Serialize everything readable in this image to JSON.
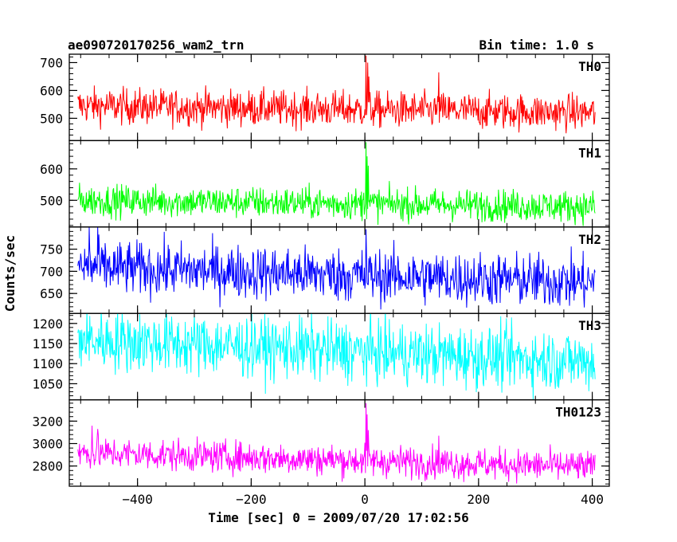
{
  "header": {
    "left_title": "ae090720170256_wam2_trn",
    "right_title": "Bin time: 1.0 s"
  },
  "chart_data": {
    "type": "line",
    "xlabel": "Time [sec] 0 = 2009/07/20 17:02:56",
    "ylabel": "Counts/sec",
    "xlim": [
      -520,
      430
    ],
    "xticks": [
      -400,
      -200,
      0,
      200,
      400
    ],
    "xtick_labels": [
      "−400",
      "−200",
      "0",
      "200",
      "400"
    ],
    "x_range": [
      -505,
      405
    ],
    "panels": [
      {
        "name": "TH0",
        "color": "#ff0000",
        "ylim": [
          420,
          730
        ],
        "yticks": [
          500,
          600,
          700
        ],
        "baseline_start": 545,
        "baseline_end": 520,
        "noise": 32,
        "spikes": [
          [
            2,
            725
          ],
          [
            5,
            700
          ],
          [
            7,
            650
          ],
          [
            130,
            665
          ]
        ]
      },
      {
        "name": "TH1",
        "color": "#00ff00",
        "ylim": [
          415,
          690
        ],
        "yticks": [
          500,
          600
        ],
        "baseline_start": 500,
        "baseline_end": 480,
        "noise": 25,
        "spikes": [
          [
            2,
            685
          ],
          [
            4,
            640
          ],
          [
            6,
            610
          ]
        ]
      },
      {
        "name": "TH2",
        "color": "#0000ff",
        "ylim": [
          605,
          800
        ],
        "yticks": [
          650,
          700,
          750
        ],
        "baseline_start": 710,
        "baseline_end": 675,
        "noise": 30,
        "spikes": [
          [
            2,
            795
          ],
          [
            -485,
            800
          ],
          [
            -470,
            800
          ]
        ]
      },
      {
        "name": "TH3",
        "color": "#00ffff",
        "ylim": [
          1010,
          1225
        ],
        "yticks": [
          1050,
          1100,
          1150,
          1200
        ],
        "baseline_start": 1160,
        "baseline_end": 1105,
        "noise": 38,
        "spikes": []
      },
      {
        "name": "TH0123",
        "color": "#ff00ff",
        "ylim": [
          2620,
          3390
        ],
        "yticks": [
          2800,
          3000,
          3200
        ],
        "baseline_start": 2920,
        "baseline_end": 2790,
        "noise": 70,
        "spikes": [
          [
            2,
            3360
          ],
          [
            4,
            3260
          ],
          [
            6,
            3120
          ],
          [
            -480,
            3160
          ],
          [
            -470,
            3130
          ],
          [
            130,
            3070
          ]
        ]
      }
    ]
  }
}
